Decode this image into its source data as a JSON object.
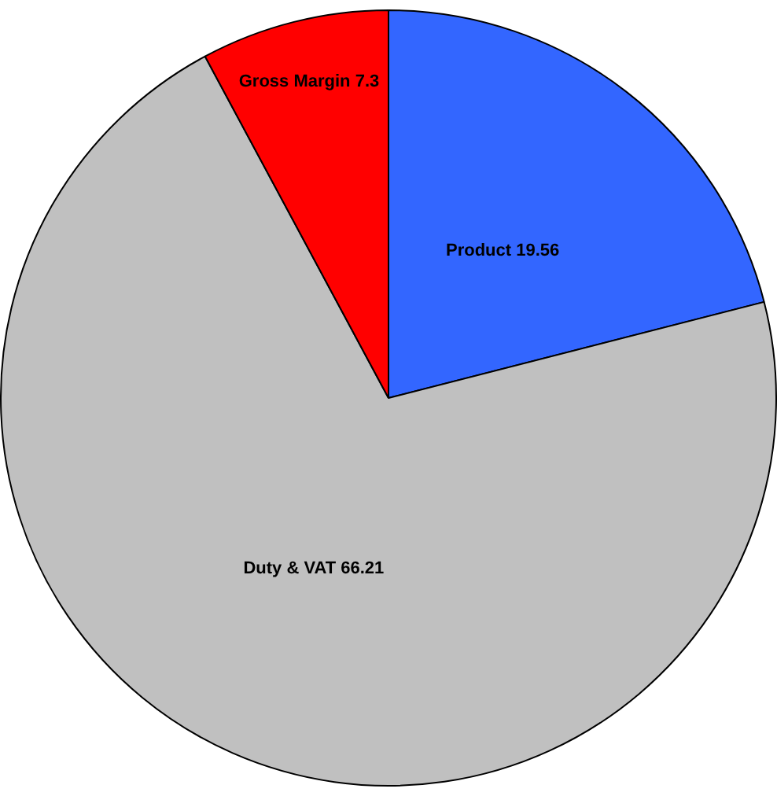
{
  "chart_data": {
    "type": "pie",
    "categories": [
      "Product",
      "Duty & VAT",
      "Gross Margin"
    ],
    "values": [
      19.56,
      66.21,
      7.3
    ],
    "colors": [
      "#3366ff",
      "#c0c0c0",
      "#ff0000"
    ],
    "data_labels": true,
    "legend": false
  }
}
